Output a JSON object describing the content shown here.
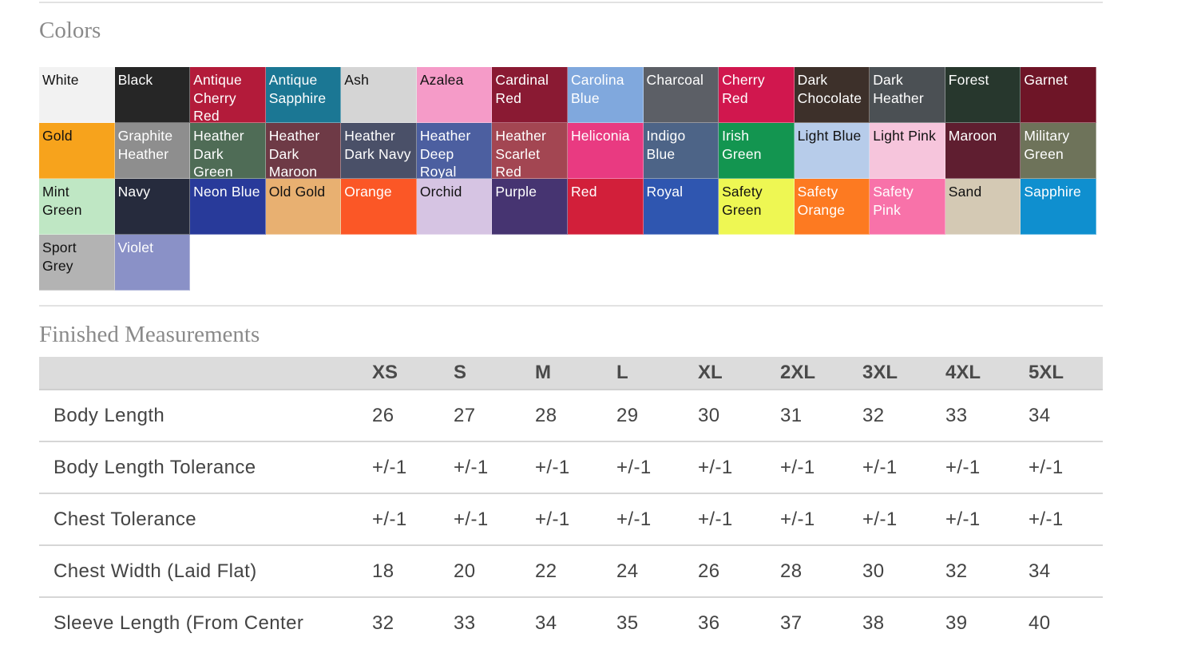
{
  "colors_section": {
    "title": "Colors",
    "swatches": [
      {
        "name": "White",
        "bg": "#f2f2f2",
        "fg": "#111111"
      },
      {
        "name": "Black",
        "bg": "#262626",
        "fg": "#ffffff"
      },
      {
        "name": "Antique Cherry Red",
        "bg": "#b31b3a",
        "fg": "#ffffff"
      },
      {
        "name": "Antique Sapphire",
        "bg": "#1b7794",
        "fg": "#ffffff"
      },
      {
        "name": "Ash",
        "bg": "#d5d5d5",
        "fg": "#111111"
      },
      {
        "name": "Azalea",
        "bg": "#f59bc8",
        "fg": "#111111"
      },
      {
        "name": "Cardinal Red",
        "bg": "#8a1a33",
        "fg": "#ffffff"
      },
      {
        "name": "Carolina Blue",
        "bg": "#80a8dd",
        "fg": "#ffffff"
      },
      {
        "name": "Charcoal",
        "bg": "#5c5f66",
        "fg": "#ffffff"
      },
      {
        "name": "Cherry Red",
        "bg": "#d1174e",
        "fg": "#ffffff"
      },
      {
        "name": "Dark Chocolate",
        "bg": "#3d302a",
        "fg": "#ffffff"
      },
      {
        "name": "Dark Heather",
        "bg": "#4b5054",
        "fg": "#ffffff"
      },
      {
        "name": "Forest",
        "bg": "#27372d",
        "fg": "#ffffff"
      },
      {
        "name": "Garnet",
        "bg": "#6e1527",
        "fg": "#ffffff"
      },
      {
        "name": "Gold",
        "bg": "#f7a31c",
        "fg": "#111111"
      },
      {
        "name": "Graphite Heather",
        "bg": "#8e8e8e",
        "fg": "#ffffff"
      },
      {
        "name": "Heather Dark Green",
        "bg": "#4f6c56",
        "fg": "#ffffff"
      },
      {
        "name": "Heather Dark Maroon",
        "bg": "#6e3a46",
        "fg": "#ffffff"
      },
      {
        "name": "Heather Dark Navy",
        "bg": "#4a5068",
        "fg": "#ffffff"
      },
      {
        "name": "Heather Deep Royal",
        "bg": "#4c5fa0",
        "fg": "#ffffff"
      },
      {
        "name": "Heather Scarlet Red",
        "bg": "#a34652",
        "fg": "#ffffff"
      },
      {
        "name": "Heliconia",
        "bg": "#e93a81",
        "fg": "#ffffff"
      },
      {
        "name": "Indigo Blue",
        "bg": "#4d6487",
        "fg": "#ffffff"
      },
      {
        "name": "Irish Green",
        "bg": "#139550",
        "fg": "#ffffff"
      },
      {
        "name": "Light Blue",
        "bg": "#b7ccea",
        "fg": "#111111"
      },
      {
        "name": "Light Pink",
        "bg": "#f6c5dc",
        "fg": "#111111"
      },
      {
        "name": "Maroon",
        "bg": "#5f1e30",
        "fg": "#ffffff"
      },
      {
        "name": "Military Green",
        "bg": "#6e735a",
        "fg": "#ffffff"
      },
      {
        "name": "Mint Green",
        "bg": "#bfe7c4",
        "fg": "#111111"
      },
      {
        "name": "Navy",
        "bg": "#262b3d",
        "fg": "#ffffff"
      },
      {
        "name": "Neon Blue",
        "bg": "#283a9a",
        "fg": "#ffffff"
      },
      {
        "name": "Old Gold",
        "bg": "#e8b071",
        "fg": "#111111"
      },
      {
        "name": "Orange",
        "bg": "#fb5726",
        "fg": "#ffffff"
      },
      {
        "name": "Orchid",
        "bg": "#d6c4e3",
        "fg": "#111111"
      },
      {
        "name": "Purple",
        "bg": "#463471",
        "fg": "#ffffff"
      },
      {
        "name": "Red",
        "bg": "#d21f3a",
        "fg": "#ffffff"
      },
      {
        "name": "Royal",
        "bg": "#2f56b0",
        "fg": "#ffffff"
      },
      {
        "name": "Safety Green",
        "bg": "#eef753",
        "fg": "#111111"
      },
      {
        "name": "Safety Orange",
        "bg": "#fd7a21",
        "fg": "#ffffff"
      },
      {
        "name": "Safety Pink",
        "bg": "#f872a9",
        "fg": "#ffffff"
      },
      {
        "name": "Sand",
        "bg": "#d4c9b4",
        "fg": "#111111"
      },
      {
        "name": "Sapphire",
        "bg": "#0f8fcf",
        "fg": "#ffffff"
      },
      {
        "name": "Sport Grey",
        "bg": "#b3b3b3",
        "fg": "#111111"
      },
      {
        "name": "Violet",
        "bg": "#8a91c7",
        "fg": "#ffffff"
      }
    ]
  },
  "measurements_section": {
    "title": "Finished Measurements",
    "sizes": [
      "XS",
      "S",
      "M",
      "L",
      "XL",
      "2XL",
      "3XL",
      "4XL",
      "5XL"
    ],
    "rows": [
      {
        "label": "Body Length",
        "values": [
          "26",
          "27",
          "28",
          "29",
          "30",
          "31",
          "32",
          "33",
          "34"
        ]
      },
      {
        "label": "Body Length Tolerance",
        "values": [
          "+/-1",
          "+/-1",
          "+/-1",
          "+/-1",
          "+/-1",
          "+/-1",
          "+/-1",
          "+/-1",
          "+/-1"
        ]
      },
      {
        "label": "Chest Tolerance",
        "values": [
          "+/-1",
          "+/-1",
          "+/-1",
          "+/-1",
          "+/-1",
          "+/-1",
          "+/-1",
          "+/-1",
          "+/-1"
        ]
      },
      {
        "label": "Chest Width (Laid Flat)",
        "values": [
          "18",
          "20",
          "22",
          "24",
          "26",
          "28",
          "30",
          "32",
          "34"
        ]
      },
      {
        "label": "Sleeve Length (From Center",
        "values": [
          "32",
          "33",
          "34",
          "35",
          "36",
          "37",
          "38",
          "39",
          "40"
        ]
      }
    ]
  }
}
